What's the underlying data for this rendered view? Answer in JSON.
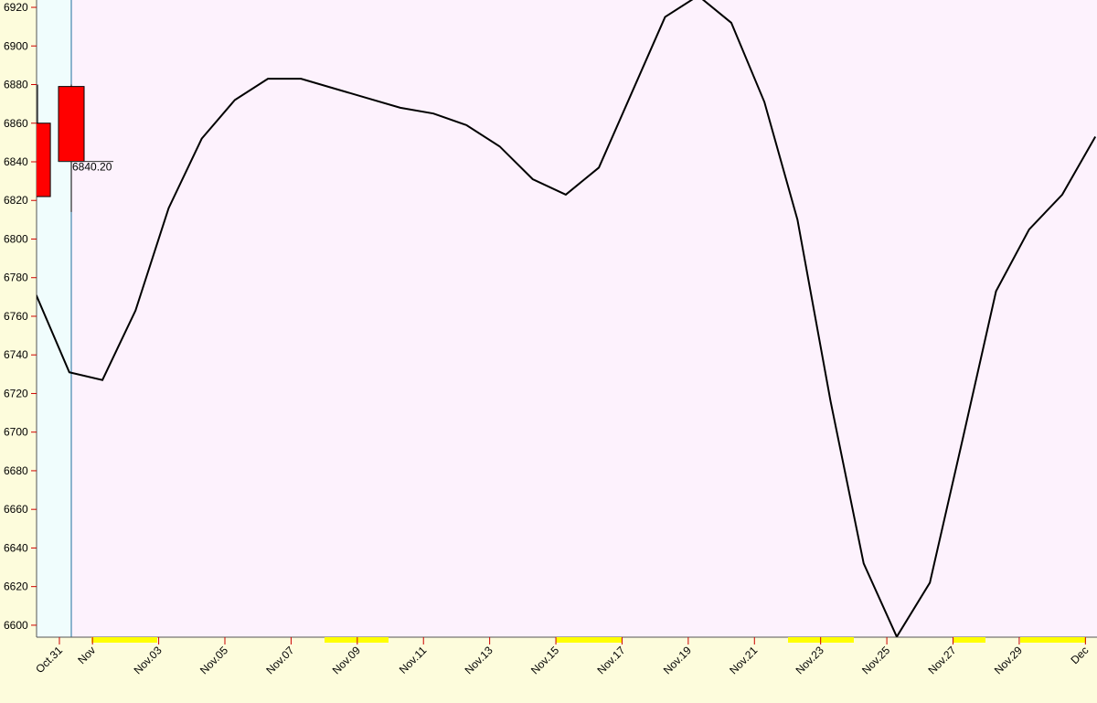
{
  "chart_data": {
    "type": "line",
    "x": [
      -0.7,
      0.3,
      1.3,
      2.3,
      3.3,
      4.3,
      5.3,
      6.3,
      7.3,
      8.3,
      9.3,
      10.3,
      11.3,
      12.3,
      13.3,
      14.3,
      15.3,
      16.3,
      17.3,
      18.3,
      19.3,
      20.3,
      21.3,
      22.3,
      23.3,
      24.3,
      25.3,
      26.3,
      27.3,
      28.3,
      29.3,
      30.3,
      31.3
    ],
    "series": [
      {
        "color": "#000000",
        "values": [
          6771,
          6731,
          6727,
          6763,
          6816,
          6852,
          6872,
          6883,
          6883,
          6878,
          6873,
          6868,
          6865,
          6859,
          6848,
          6831,
          6823,
          6837,
          6876,
          6915,
          6926,
          6912,
          6871,
          6810,
          6716,
          6632,
          6594,
          6622,
          6697,
          6773,
          6805,
          6823,
          6853
        ]
      }
    ],
    "candles": {
      "color": "#ff0000",
      "x": [
        -0.66,
        0.36
      ],
      "open": [
        6860,
        6879
      ],
      "close": [
        6822,
        6840.2
      ],
      "high": [
        6880,
        6880
      ],
      "low": [
        6822,
        6814
      ]
    },
    "last_price": {
      "value": 6840.2,
      "label": "6840.20"
    },
    "xlim": [
      -0.69,
      31.35
    ],
    "ylim": [
      6593.8,
      6923.8
    ],
    "xticks": [
      {
        "value": 0,
        "label": "Oct.31"
      },
      {
        "value": 1,
        "label": "Nov"
      },
      {
        "value": 3,
        "label": "Nov.03"
      },
      {
        "value": 5,
        "label": "Nov.05"
      },
      {
        "value": 7,
        "label": "Nov.07"
      },
      {
        "value": 9,
        "label": "Nov.09"
      },
      {
        "value": 11,
        "label": "Nov.11"
      },
      {
        "value": 13,
        "label": "Nov.13"
      },
      {
        "value": 15,
        "label": "Nov.15"
      },
      {
        "value": 17,
        "label": "Nov.17"
      },
      {
        "value": 19,
        "label": "Nov.19"
      },
      {
        "value": 21,
        "label": "Nov.21"
      },
      {
        "value": 23,
        "label": "Nov.23"
      },
      {
        "value": 25,
        "label": "Nov.25"
      },
      {
        "value": 27,
        "label": "Nov.27"
      },
      {
        "value": 29,
        "label": "Nov.29"
      },
      {
        "value": 31,
        "label": "Dec"
      }
    ],
    "yticks": [
      6600,
      6620,
      6640,
      6660,
      6680,
      6700,
      6720,
      6740,
      6760,
      6780,
      6800,
      6820,
      6840,
      6860,
      6880,
      6900,
      6920
    ]
  }
}
